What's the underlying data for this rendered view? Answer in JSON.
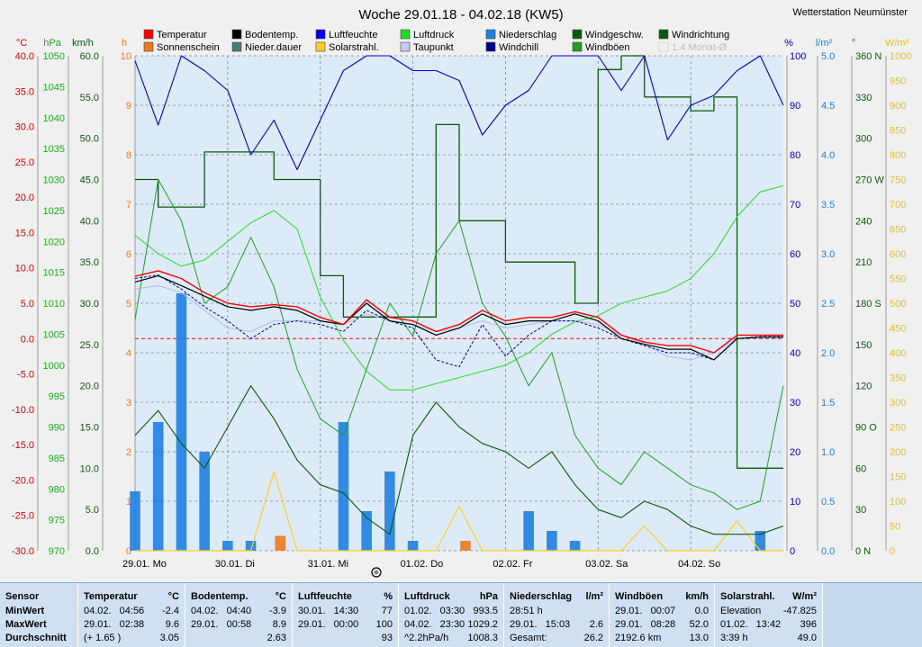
{
  "title": "Woche 29.01.18 - 04.02.18 (KW5)",
  "station": "Wetterstation Neumünster",
  "colors": {
    "temp": "#ff0000",
    "soil": "#000000",
    "humidity": "#0000cc",
    "pressure": "#22cc22",
    "precip": "#1f7fe0",
    "windspeed": "#0b5a0b",
    "winddir": "#0b5a0b",
    "sunshine": "#f07820",
    "precipdur": "#4a7878",
    "solar": "#ffd020",
    "dewpoint": "#c0c0f0",
    "windchill": "#000088",
    "gusts": "#20a020",
    "monthavg": "#d0d0d0",
    "plot_bg": "#ddeaf8",
    "zero_line": "#ff0000"
  },
  "legend": [
    {
      "label": "Temperatur",
      "color": "#ff0000"
    },
    {
      "label": "Bodentemp.",
      "color": "#000000"
    },
    {
      "label": "Luftfeuchte",
      "color": "#0000ff"
    },
    {
      "label": "Luftdruck",
      "color": "#22dd22"
    },
    {
      "label": "Niederschlag",
      "color": "#1f7fe0"
    },
    {
      "label": "Windgeschw.",
      "color": "#0b5a0b"
    },
    {
      "label": "Windrichtung",
      "color": "#0b5a0b"
    },
    {
      "label": "Sonnenschein",
      "color": "#f07820"
    },
    {
      "label": "Nieder.dauer",
      "color": "#4a7878"
    },
    {
      "label": "Solarstrahl.",
      "color": "#ffd020"
    },
    {
      "label": "Taupunkt",
      "color": "#c8c8f0"
    },
    {
      "label": "Windchill",
      "color": "#000088"
    },
    {
      "label": "Windböen",
      "color": "#20a020"
    },
    {
      "label": "1.4 Monat-Ø",
      "color": "#e0e0e0"
    }
  ],
  "axes": {
    "left_units": [
      "°C",
      "hPa",
      "km/h",
      "h"
    ],
    "right_units": [
      "%",
      "l/m²",
      "°",
      "W/m²"
    ],
    "temp_ticks": [
      "40.0",
      "35.0",
      "30.0",
      "25.0",
      "20.0",
      "15.0",
      "10.0",
      "5.0",
      "0.0",
      "-5.0",
      "-10.0",
      "-15.0",
      "-20.0",
      "-25.0",
      "-30.0"
    ],
    "hpa_ticks": [
      "1050",
      "1045",
      "1040",
      "1035",
      "1030",
      "1025",
      "1020",
      "1015",
      "1010",
      "1005",
      "1000",
      "995",
      "990",
      "985",
      "980",
      "975",
      "970"
    ],
    "kmh_ticks": [
      "60.0",
      "55.0",
      "50.0",
      "45.0",
      "40.0",
      "35.0",
      "30.0",
      "25.0",
      "20.0",
      "15.0",
      "10.0",
      "5.0",
      "0.0"
    ],
    "h_ticks": [
      "10",
      "9",
      "8",
      "7",
      "6",
      "5",
      "4",
      "3",
      "2",
      "1",
      "0"
    ],
    "pct_ticks": [
      "100",
      "90",
      "80",
      "70",
      "60",
      "50",
      "40",
      "30",
      "20",
      "10",
      "0"
    ],
    "lm2_ticks": [
      "5.0",
      "4.5",
      "4.0",
      "3.5",
      "3.0",
      "2.5",
      "2.0",
      "1.5",
      "1.0",
      "0.5",
      "0.0"
    ],
    "deg_ticks": [
      "360 N",
      "330",
      "300",
      "270 W",
      "240",
      "210",
      "180 S",
      "150",
      "120",
      "90  O",
      "60",
      "30",
      "0    N"
    ],
    "wm2_ticks": [
      "1000",
      "950",
      "900",
      "850",
      "800",
      "750",
      "700",
      "650",
      "600",
      "550",
      "500",
      "450",
      "400",
      "350",
      "300",
      "250",
      "200",
      "150",
      "100",
      "50",
      "0"
    ],
    "day_labels": [
      "29.01. Mo",
      "30.01. Di",
      "31.01. Mi",
      "01.02. Do",
      "02.02. Fr",
      "03.02. Sa",
      "04.02. So"
    ]
  },
  "chart_data": {
    "type": "line",
    "x": [
      "29.01. 00",
      "29.01. 06",
      "29.01. 12",
      "29.01. 18",
      "30.01. 00",
      "30.01. 06",
      "30.01. 12",
      "30.01. 18",
      "31.01. 00",
      "31.01. 06",
      "31.01. 12",
      "31.01. 18",
      "01.02. 00",
      "01.02. 06",
      "01.02. 12",
      "01.02. 18",
      "02.02. 00",
      "02.02. 06",
      "02.02. 12",
      "02.02. 18",
      "03.02. 00",
      "03.02. 06",
      "03.02. 12",
      "03.02. 18",
      "04.02. 00",
      "04.02. 06",
      "04.02. 12",
      "04.02. 18",
      "05.02. 00"
    ],
    "series": [
      {
        "name": "Temperatur",
        "unit": "°C",
        "values": [
          8.8,
          9.6,
          8.5,
          6.5,
          5.0,
          4.5,
          4.8,
          4.5,
          3.0,
          2.0,
          5.5,
          3.0,
          2.5,
          1.0,
          2.0,
          4.0,
          2.5,
          3.0,
          3.0,
          3.8,
          3.0,
          0.5,
          -0.5,
          -1.0,
          -1.0,
          -2.0,
          0.5,
          0.5,
          0.5
        ]
      },
      {
        "name": "Bodentemp.",
        "unit": "°C",
        "values": [
          8.0,
          8.9,
          7.5,
          6.0,
          4.5,
          4.0,
          4.5,
          4.0,
          2.5,
          2.0,
          5.0,
          2.5,
          2.0,
          0.5,
          1.5,
          3.5,
          2.0,
          2.5,
          2.5,
          3.5,
          2.5,
          0.0,
          -0.8,
          -1.5,
          -1.5,
          -3.0,
          0.0,
          0.2,
          0.2
        ]
      },
      {
        "name": "Luftfeuchte",
        "unit": "%",
        "values": [
          99,
          86,
          100,
          97,
          93,
          80,
          87,
          77,
          87,
          97,
          100,
          100,
          97,
          97,
          95,
          84,
          90,
          93,
          100,
          100,
          100,
          93,
          100,
          83,
          90,
          92,
          97,
          100,
          90
        ]
      },
      {
        "name": "Luftdruck",
        "unit": "hPa",
        "values": [
          1021,
          1018,
          1016,
          1017,
          1020,
          1023,
          1025,
          1022,
          1011,
          1004,
          999,
          996,
          996,
          997,
          998,
          999,
          1000,
          1002,
          1005,
          1007,
          1008,
          1010,
          1011,
          1012,
          1014,
          1018,
          1024,
          1028,
          1029
        ]
      },
      {
        "name": "Taupunkt",
        "unit": "°C",
        "values": [
          7.0,
          7.5,
          6.5,
          4.0,
          1.5,
          1.0,
          2.5,
          2.5,
          2.5,
          2.0,
          3.5,
          2.5,
          2.0,
          1.0,
          1.5,
          2.5,
          1.5,
          2.0,
          2.5,
          2.5,
          2.0,
          0.5,
          -0.8,
          -2.5,
          -3.0,
          -2.0,
          0.0,
          0.2,
          0.3
        ]
      },
      {
        "name": "Windchill",
        "unit": "°C",
        "values": [
          8.5,
          9.0,
          7.0,
          4.5,
          2.5,
          0.0,
          2.0,
          2.5,
          2.0,
          1.0,
          4.0,
          2.5,
          1.5,
          -3.0,
          -4.0,
          2.0,
          -2.5,
          0.5,
          2.5,
          2.5,
          1.5,
          0.0,
          -1.0,
          -2.0,
          -2.0,
          -3.0,
          0.0,
          0.3,
          0.3
        ]
      },
      {
        "name": "Windgeschw.",
        "unit": "km/h",
        "values": [
          14,
          17,
          13,
          10,
          15,
          20,
          16,
          11,
          8,
          7,
          4,
          2,
          14,
          18,
          15,
          13,
          12,
          10,
          12,
          8,
          5,
          4,
          6,
          5,
          3,
          2,
          2,
          2,
          3
        ]
      },
      {
        "name": "Windböen",
        "unit": "km/h",
        "values": [
          28,
          45,
          40,
          30,
          32,
          38,
          32,
          22,
          16,
          14,
          22,
          30,
          26,
          36,
          40,
          30,
          26,
          20,
          24,
          14,
          10,
          8,
          12,
          10,
          8,
          7,
          5,
          6,
          20
        ]
      },
      {
        "name": "Windrichtung",
        "unit": "°",
        "values": [
          270,
          250,
          250,
          290,
          290,
          290,
          270,
          270,
          200,
          170,
          170,
          170,
          170,
          310,
          240,
          240,
          210,
          210,
          210,
          180,
          350,
          360,
          330,
          330,
          320,
          330,
          60,
          60,
          60
        ]
      },
      {
        "name": "Solarstrahl.",
        "unit": "W/m²",
        "values": [
          0,
          0,
          0,
          0,
          0,
          0,
          160,
          0,
          0,
          0,
          0,
          0,
          0,
          0,
          90,
          0,
          0,
          0,
          0,
          0,
          0,
          0,
          50,
          0,
          0,
          0,
          60,
          0,
          0
        ]
      },
      {
        "name": "Niederschlag",
        "unit": "l/m²",
        "values": [
          0.6,
          1.3,
          2.6,
          1.0,
          0.1,
          0.1,
          0.0,
          0.0,
          0.0,
          1.3,
          0.4,
          0.8,
          0.1,
          0.0,
          0.0,
          0.0,
          0.0,
          0.4,
          0.2,
          0.1,
          0.0,
          0.0,
          0.0,
          0.0,
          0.0,
          0.0,
          0.0,
          0.2,
          0.0
        ]
      },
      {
        "name": "Sonnenschein",
        "unit": "h",
        "values": [
          0,
          0,
          0,
          0,
          0,
          0,
          0.3,
          0,
          0,
          0,
          0,
          0,
          0,
          0,
          0.2,
          0,
          0,
          0,
          0,
          0,
          0,
          0,
          0,
          0,
          0,
          0,
          0,
          0,
          0
        ]
      }
    ],
    "ylim_temp": [
      -30,
      40
    ],
    "ylim_hpa": [
      970,
      1050
    ],
    "ylim_kmh": [
      0,
      60
    ],
    "ylim_pct": [
      0,
      100
    ],
    "ylim_lm2": [
      0,
      5
    ],
    "ylim_deg": [
      0,
      360
    ],
    "ylim_wm2": [
      0,
      1000
    ],
    "grid": true,
    "reference_line_temp": 0
  },
  "stats": {
    "sensor": {
      "header": "Sensor",
      "rows": [
        "MinWert",
        "MaxWert",
        "Durchschnitt"
      ]
    },
    "columns": [
      {
        "name": "Temperatur",
        "unit": "°C",
        "rows": [
          {
            "date": "04.02.",
            "time": "04:56",
            "value": "-2.4"
          },
          {
            "date": "29.01.",
            "time": "02:38",
            "value": "9.6"
          },
          {
            "date": "(+ 1.65 )",
            "time": "",
            "value": "3.05"
          }
        ]
      },
      {
        "name": "Bodentemp.",
        "unit": "°C",
        "rows": [
          {
            "date": "04.02.",
            "time": "04:40",
            "value": "-3.9"
          },
          {
            "date": "29.01.",
            "time": "00:58",
            "value": "8.9"
          },
          {
            "date": "",
            "time": "",
            "value": "2.63"
          }
        ]
      },
      {
        "name": "Luftfeuchte",
        "unit": "%",
        "rows": [
          {
            "date": "30.01.",
            "time": "14:30",
            "value": "77"
          },
          {
            "date": "29.01.",
            "time": "00:00",
            "value": "100"
          },
          {
            "date": "",
            "time": "",
            "value": "93"
          }
        ]
      },
      {
        "name": "Luftdruck",
        "unit": "hPa",
        "rows": [
          {
            "date": "01.02.",
            "time": "03:30",
            "value": "993.5"
          },
          {
            "date": "04.02.",
            "time": "23:30",
            "value": "1029.2"
          },
          {
            "date": "^2.2hPa/h",
            "time": "",
            "value": "1008.3"
          }
        ]
      },
      {
        "name": "Niederschlag",
        "unit": "l/m²",
        "rows": [
          {
            "date": "28:51 h",
            "time": "",
            "value": ""
          },
          {
            "date": "29.01.",
            "time": "15:03",
            "value": "2.6"
          },
          {
            "date": "Gesamt:",
            "time": "",
            "value": "26.2"
          }
        ]
      },
      {
        "name": "Windböen",
        "unit": "km/h",
        "rows": [
          {
            "date": "29.01.",
            "time": "00:07",
            "value": "0.0"
          },
          {
            "date": "29.01.",
            "time": "08:28",
            "value": "52.0"
          },
          {
            "date": "2192.6 km",
            "time": "",
            "value": "13.0"
          }
        ]
      },
      {
        "name": "Solarstrahl.",
        "unit": "W/m²",
        "rows": [
          {
            "date": "Elevation",
            "time": "",
            "value": "-47.825"
          },
          {
            "date": "01.02.",
            "time": "13:42",
            "value": "396"
          },
          {
            "date": "3:39 h",
            "time": "",
            "value": "49.0"
          }
        ]
      }
    ]
  }
}
